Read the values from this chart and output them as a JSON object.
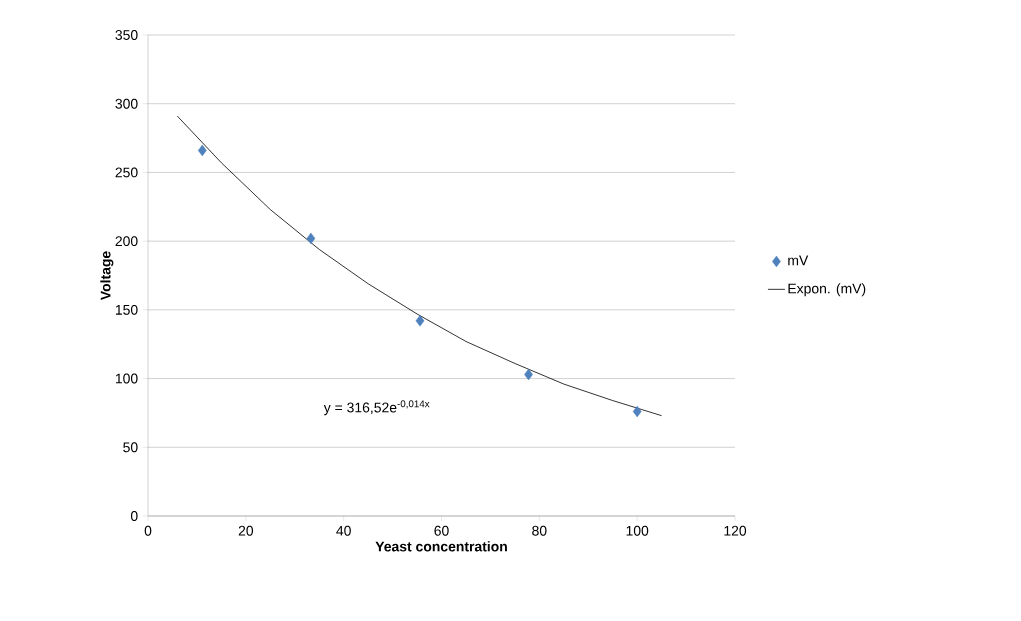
{
  "chart_data": {
    "type": "scatter",
    "xlabel": "Yeast concentration",
    "ylabel": "Voltage",
    "xlim": [
      0,
      120
    ],
    "xticks": [
      0,
      20,
      40,
      60,
      80,
      100,
      120
    ],
    "ylim": [
      0,
      350
    ],
    "yticks": [
      0,
      50,
      100,
      150,
      200,
      250,
      300,
      350
    ],
    "grid": "y",
    "legend": "right",
    "annotations": [
      "y = 316,52e$^{-0,014x}$"
    ],
    "series": [
      {
        "name": "mV",
        "marker": "diamond",
        "color": "#4f81bd",
        "x": [
          11.1,
          33.3,
          55.6,
          77.8,
          100
        ],
        "values": [
          266,
          202,
          142,
          103,
          76
        ]
      },
      {
        "name": "Expon. (mV)",
        "type": "line",
        "marker": "none",
        "line_style": "solid",
        "color": "#000000",
        "x": [
          6,
          15,
          25,
          35,
          45,
          55,
          65,
          75,
          85,
          95,
          105
        ],
        "values": [
          291,
          257,
          223,
          194,
          169,
          147,
          127,
          111,
          96,
          84,
          73
        ]
      }
    ]
  }
}
